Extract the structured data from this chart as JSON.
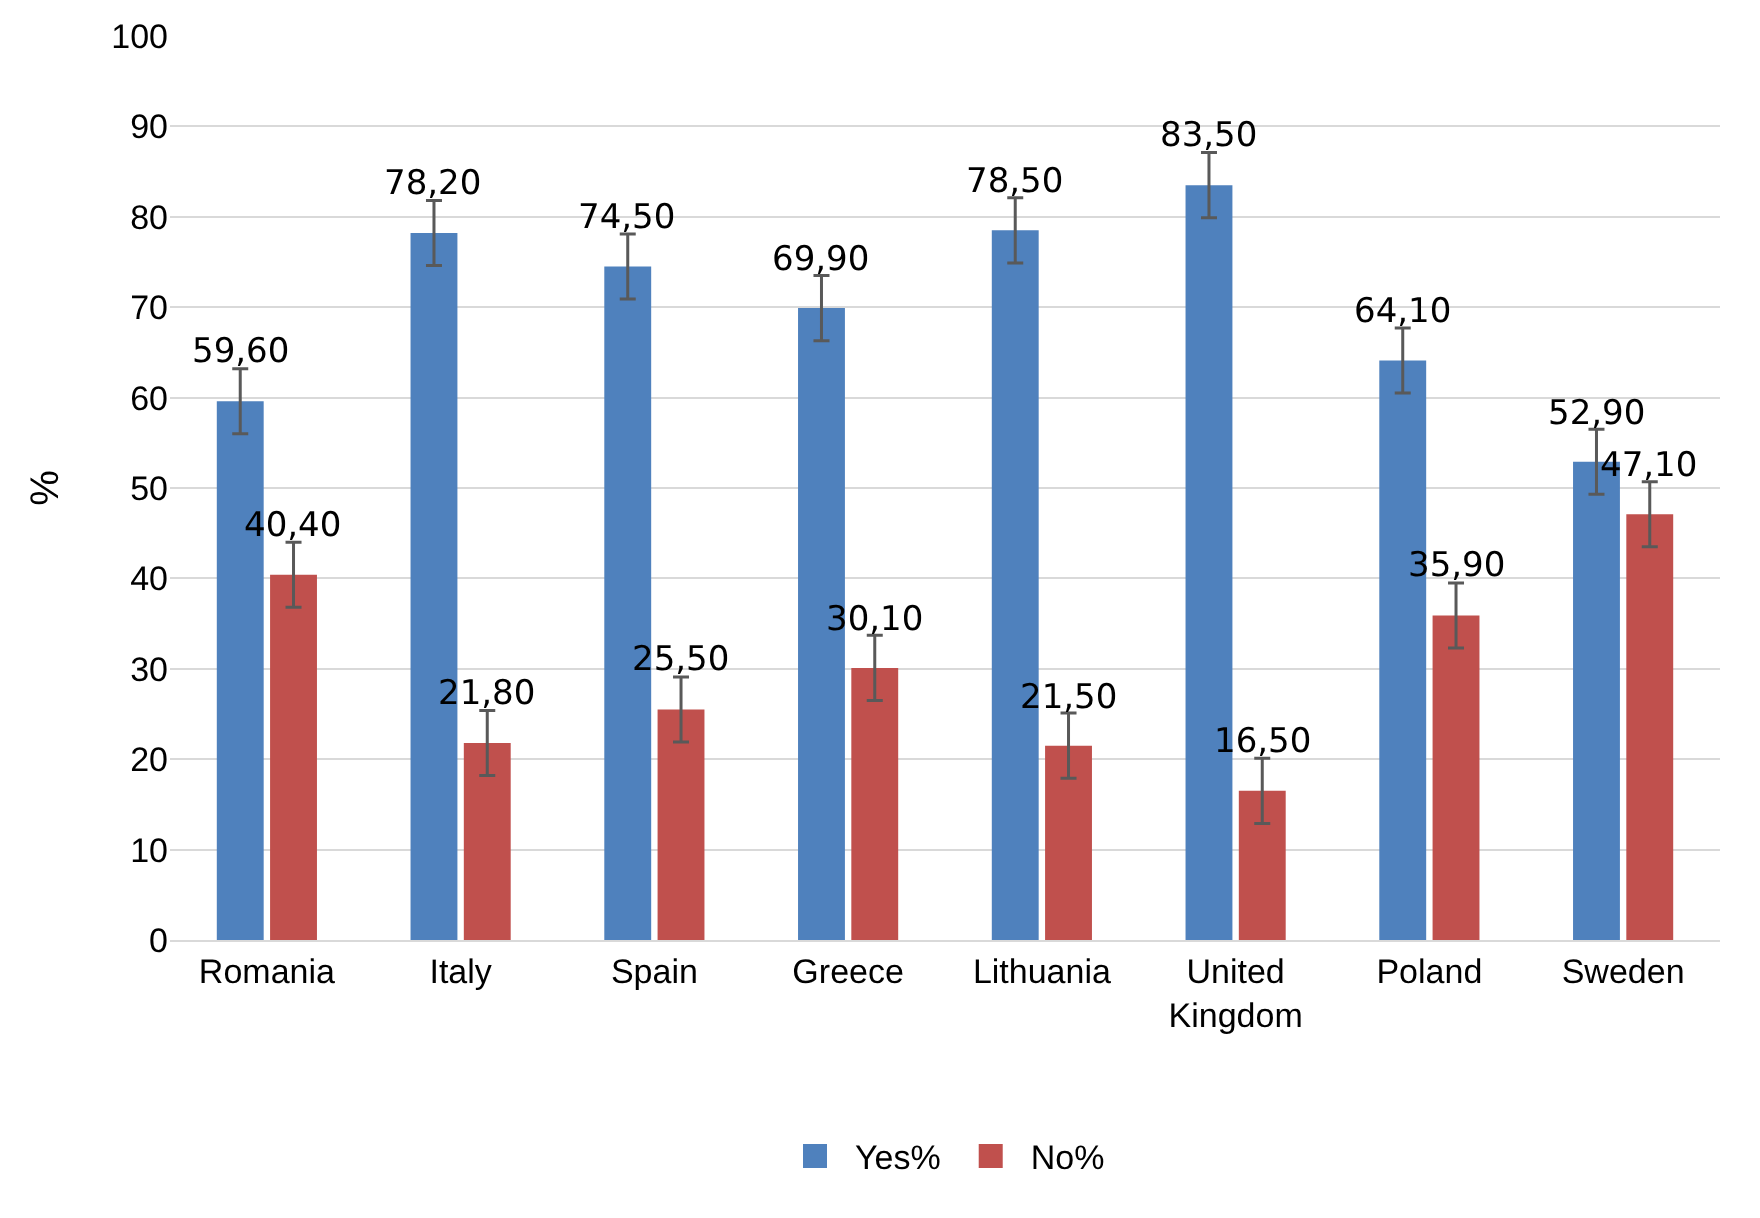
{
  "chart_data": {
    "type": "bar",
    "ylabel": "%",
    "categories": [
      "Romania",
      "Italy",
      "Spain",
      "Greece",
      "Lithuania",
      "United Kingdom",
      "Poland",
      "Sweden"
    ],
    "series": [
      {
        "name": "Yes%",
        "color": "#4f81bd",
        "values": [
          59.6,
          78.2,
          74.5,
          69.9,
          78.5,
          83.5,
          64.1,
          52.9
        ],
        "errors": [
          3.6,
          3.6,
          3.6,
          3.6,
          3.6,
          3.6,
          3.6,
          3.6
        ],
        "value_labels": [
          "59,60",
          "78,20",
          "74,50",
          "69,90",
          "78,50",
          "83,50",
          "64,10",
          "52,90"
        ]
      },
      {
        "name": "No%",
        "color": "#c0504d",
        "values": [
          40.4,
          21.8,
          25.5,
          30.1,
          21.5,
          16.5,
          35.9,
          47.1
        ],
        "errors": [
          3.6,
          3.6,
          3.6,
          3.6,
          3.6,
          3.6,
          3.6,
          3.6
        ],
        "value_labels": [
          "40,40",
          "21,80",
          "25,50",
          "30,10",
          "21,50",
          "16,50",
          "35,90",
          "47,10"
        ]
      }
    ],
    "ylim": [
      0,
      100
    ],
    "yticks": [
      0,
      10,
      20,
      30,
      40,
      50,
      60,
      70,
      80,
      90,
      100
    ],
    "grid": "y",
    "legend": "bottom"
  }
}
